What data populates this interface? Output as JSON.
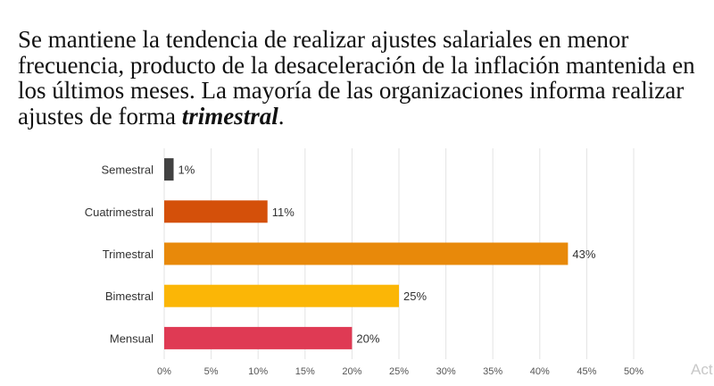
{
  "heading": {
    "text_before": "Se mantiene la tendencia de realizar ajustes salariales en menor frecuencia, producto de la desaceleración de la inflación mantenida en los últimos meses. La mayoría de las organizaciones informa realizar ajustes de forma ",
    "emphasis": "trimestral",
    "text_after": "."
  },
  "watermark": "Act",
  "chart_data": {
    "type": "bar",
    "orientation": "horizontal",
    "title": "",
    "xlabel": "",
    "ylabel": "",
    "categories": [
      "Semestral",
      "Cuatrimestral",
      "Trimestral",
      "Bimestral",
      "Mensual"
    ],
    "values": [
      1,
      11,
      43,
      25,
      20
    ],
    "value_labels": [
      "1%",
      "11%",
      "43%",
      "25%",
      "20%"
    ],
    "colors": [
      "#424242",
      "#d4500a",
      "#e8890a",
      "#fbb606",
      "#df3a54"
    ],
    "xlim": [
      0,
      50
    ],
    "xticks": [
      0,
      5,
      10,
      15,
      20,
      25,
      30,
      35,
      40,
      45,
      50
    ],
    "xtick_labels": [
      "0%",
      "5%",
      "10%",
      "15%",
      "20%",
      "25%",
      "30%",
      "35%",
      "40%",
      "45%",
      "50%"
    ],
    "grid": true
  }
}
